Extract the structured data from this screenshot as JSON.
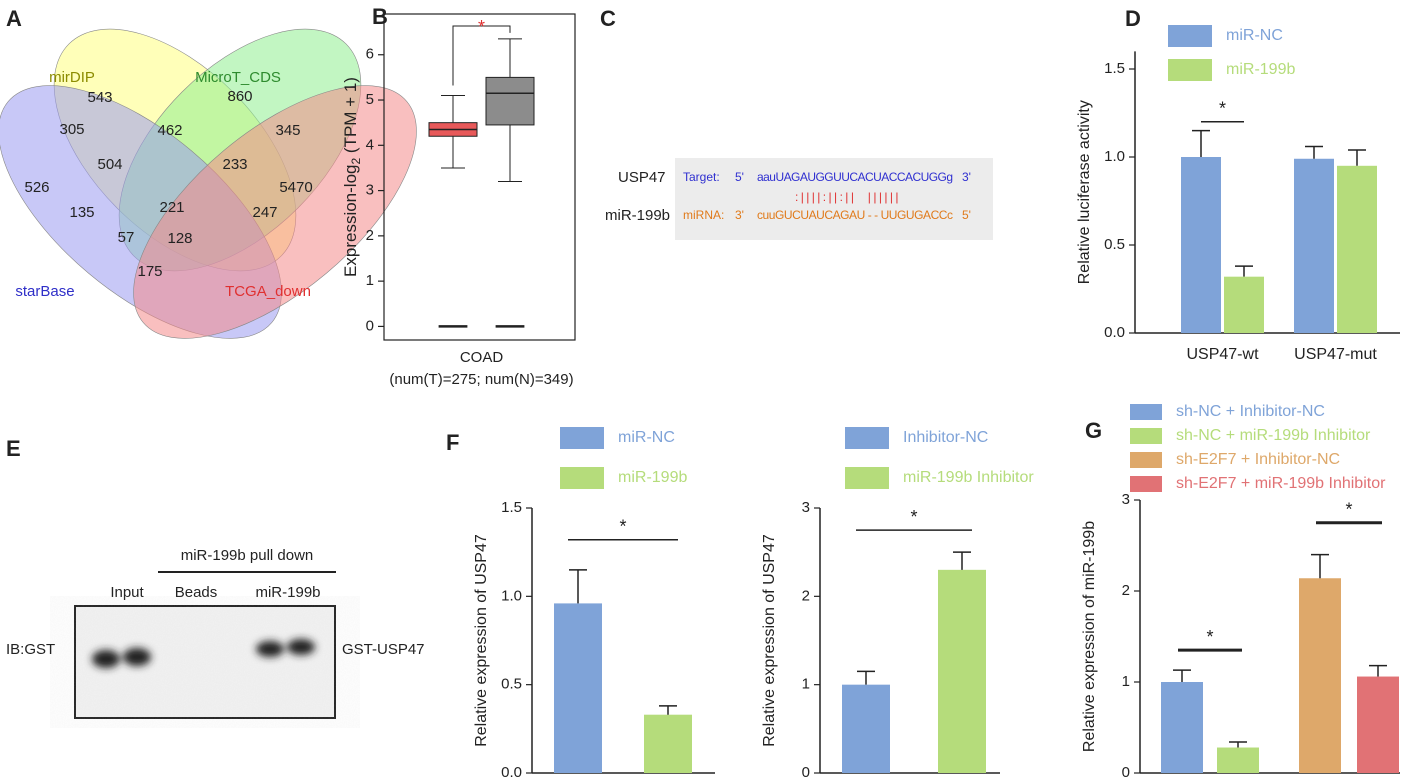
{
  "venn": {
    "label": "A",
    "sets": [
      {
        "name": "mirDIP",
        "color": "#ffff80",
        "text_color": "#8c8c00"
      },
      {
        "name": "MicroT_CDS",
        "color": "#90ee90",
        "text_color": "#2e8b2e"
      },
      {
        "name": "starBase",
        "color": "#9b9bf0",
        "text_color": "#2f2fc8"
      },
      {
        "name": "TCGA_down",
        "color": "#f48a8a",
        "text_color": "#e03030"
      }
    ],
    "regions": [
      "543",
      "860",
      "526",
      "5470",
      "305",
      "462",
      "345",
      "504",
      "233",
      "135",
      "221",
      "247",
      "57",
      "128",
      "175"
    ]
  },
  "alignment": {
    "label": "C",
    "gene": "USP47",
    "mirna": "miR-199b",
    "target": {
      "tag": "Target:",
      "start": "5'",
      "seq": "aauUAGAUGGUUCACUACCACUGGg",
      "end": "3'"
    },
    "pairs": ":||||:||:||  ||||||",
    "mirna_row": {
      "tag": "miRNA:",
      "start": "3'",
      "seq": "cuuGUCUAUCAGAU - - UUGUGACCc",
      "end": "5'"
    }
  },
  "blot": {
    "label": "E",
    "group": "miR-199b pull down",
    "lanes": [
      "Input",
      "Beads",
      "miR-199b"
    ],
    "left": "IB:GST",
    "right": "GST-USP47"
  },
  "chart_data": [
    {
      "type": "box",
      "label": "B",
      "ylabel": {
        "prefix": "Expression-log",
        "sub": "2",
        "suffix": " (TPM + 1)"
      },
      "categories": [
        "COAD"
      ],
      "subtitle": "(num(T)=275; num(N)=349)",
      "ylim": [
        -0.3,
        6.9
      ],
      "yticks": [
        0,
        1,
        2,
        3,
        4,
        5,
        6
      ],
      "boxes": [
        {
          "color": "#e8595a",
          "whisker_low": 3.5,
          "q1": 4.2,
          "median": 4.35,
          "q3": 4.5,
          "whisker_high": 5.1,
          "floor": 0
        },
        {
          "color": "#8c8c8c",
          "whisker_low": 3.2,
          "q1": 4.45,
          "median": 5.15,
          "q3": 5.5,
          "whisker_high": 6.35,
          "floor": 0
        }
      ],
      "annotations": [
        {
          "text": "*",
          "color": "#e03030"
        }
      ]
    },
    {
      "type": "bar",
      "label": "D",
      "ylabel": "Relative luciferase activity",
      "categories": [
        "USP47-wt",
        "USP47-mut"
      ],
      "series": [
        {
          "name": "miR-NC",
          "color": "#7fa3d8",
          "values": [
            1.0,
            0.99
          ],
          "errors": [
            0.15,
            0.07
          ]
        },
        {
          "name": "miR-199b",
          "color": "#b5dc7b",
          "values": [
            0.32,
            0.95
          ],
          "errors": [
            0.06,
            0.09
          ]
        }
      ],
      "ylim": [
        0,
        1.6
      ],
      "yticks": [
        {
          "value": 0,
          "label": "0.0"
        },
        0.5,
        {
          "value": 1,
          "label": "1.0"
        },
        1.5
      ],
      "annotations": [
        {
          "text": "*"
        }
      ]
    },
    {
      "type": "bar",
      "label": "F",
      "ylabel": "Relative expression of USP47",
      "series": [
        {
          "name": "miR-NC",
          "color": "#7fa3d8",
          "values": [
            0.96
          ],
          "errors": [
            0.19
          ]
        },
        {
          "name": "miR-199b",
          "color": "#b5dc7b",
          "values": [
            0.33
          ],
          "errors": [
            0.05
          ]
        }
      ],
      "ylim": [
        0,
        1.5
      ],
      "yticks": [
        {
          "value": 0,
          "label": "0.0"
        },
        0.5,
        {
          "value": 1,
          "label": "1.0"
        },
        1.5
      ],
      "annotations": [
        {
          "text": "*"
        }
      ]
    },
    {
      "type": "bar",
      "ylabel": "Relative expression of USP47",
      "series": [
        {
          "name": "Inhibitor-NC",
          "color": "#7fa3d8",
          "values": [
            1.0
          ],
          "errors": [
            0.15
          ]
        },
        {
          "name": "miR-199b Inhibitor",
          "color": "#b5dc7b",
          "values": [
            2.3
          ],
          "errors": [
            0.2
          ]
        }
      ],
      "ylim": [
        0,
        3
      ],
      "yticks": [
        0,
        1,
        2,
        3
      ],
      "annotations": [
        {
          "text": "*"
        }
      ]
    },
    {
      "type": "bar",
      "label": "G",
      "ylabel": "Relative expression of miR-199b",
      "series": [
        {
          "name": "sh-NC + Inhibitor-NC",
          "color": "#7fa3d8",
          "values": [
            1.0
          ],
          "errors": [
            0.13
          ]
        },
        {
          "name": "sh-NC + miR-199b Inhibitor",
          "color": "#b5dc7b",
          "values": [
            0.28
          ],
          "errors": [
            0.06
          ]
        },
        {
          "name": "sh-E2F7 + Inhibitor-NC",
          "color": "#dea86a",
          "values": [
            2.14
          ],
          "errors": [
            0.26
          ]
        },
        {
          "name": "sh-E2F7 + miR-199b Inhibitor",
          "color": "#e17275",
          "values": [
            1.06
          ],
          "errors": [
            0.12
          ]
        }
      ],
      "ylim": [
        0,
        3
      ],
      "yticks": [
        0,
        1,
        2,
        3
      ],
      "annotations": [
        {
          "text": "*"
        },
        {
          "text": "*"
        }
      ]
    }
  ]
}
